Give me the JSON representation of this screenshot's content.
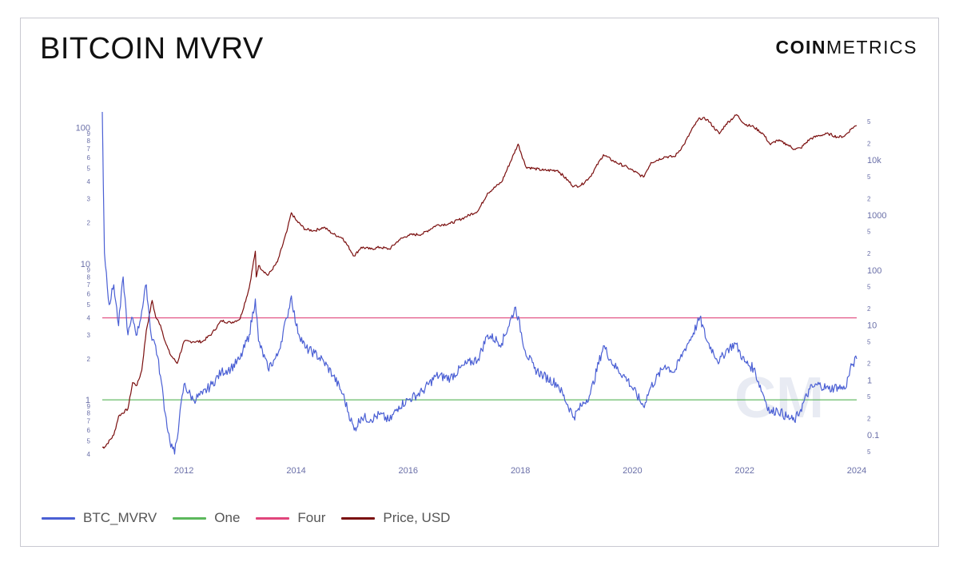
{
  "header": {
    "title": "BITCOIN MVRV",
    "brand_bold": "COIN",
    "brand_light": "METRICS",
    "watermark": "CM"
  },
  "colors": {
    "mvrv": "#4a5fd4",
    "one": "#5cb85c",
    "four": "#e0457b",
    "price": "#7a0e0e",
    "axis_text": "#6a6fa8",
    "grid": "#eeeeee"
  },
  "legend": [
    {
      "label": "BTC_MVRV",
      "color": "#4a5fd4"
    },
    {
      "label": "One",
      "color": "#5cb85c"
    },
    {
      "label": "Four",
      "color": "#e0457b"
    },
    {
      "label": "Price, USD",
      "color": "#7a0e0e"
    }
  ],
  "chart_data": {
    "type": "line",
    "x_scale": "time",
    "xlim": [
      "2010-07-18",
      "2024-01-01"
    ],
    "x_ticks": [
      "2012",
      "2014",
      "2016",
      "2018",
      "2020",
      "2022",
      "2024"
    ],
    "y_left": {
      "scale": "log",
      "ylim": [
        0.4,
        130
      ],
      "major_ticks": [
        {
          "value": 1,
          "label": "1"
        },
        {
          "value": 10,
          "label": "10"
        },
        {
          "value": 100,
          "label": "100"
        }
      ],
      "minor_ticks": [
        {
          "value": 0.4,
          "label": "4"
        },
        {
          "value": 0.5,
          "label": "5"
        },
        {
          "value": 0.6,
          "label": "6"
        },
        {
          "value": 0.7,
          "label": "7"
        },
        {
          "value": 0.8,
          "label": "8"
        },
        {
          "value": 0.9,
          "label": "9"
        },
        {
          "value": 2,
          "label": "2"
        },
        {
          "value": 3,
          "label": "3"
        },
        {
          "value": 4,
          "label": "4"
        },
        {
          "value": 5,
          "label": "5"
        },
        {
          "value": 6,
          "label": "6"
        },
        {
          "value": 7,
          "label": "7"
        },
        {
          "value": 8,
          "label": "8"
        },
        {
          "value": 9,
          "label": "9"
        },
        {
          "value": 20,
          "label": "2"
        },
        {
          "value": 30,
          "label": "3"
        },
        {
          "value": 40,
          "label": "4"
        },
        {
          "value": 50,
          "label": "5"
        },
        {
          "value": 60,
          "label": "6"
        },
        {
          "value": 70,
          "label": "7"
        },
        {
          "value": 80,
          "label": "8"
        },
        {
          "value": 90,
          "label": "9"
        }
      ]
    },
    "y_right": {
      "scale": "log",
      "ylim": [
        0.045,
        75000
      ],
      "major_ticks": [
        {
          "value": 0.1,
          "label": "0.1"
        },
        {
          "value": 1,
          "label": "1"
        },
        {
          "value": 10,
          "label": "10"
        },
        {
          "value": 100,
          "label": "100"
        },
        {
          "value": 1000,
          "label": "1000"
        },
        {
          "value": 10000,
          "label": "10k"
        }
      ],
      "minor_ticks": [
        {
          "value": 0.05,
          "label": "5"
        },
        {
          "value": 0.2,
          "label": "2"
        },
        {
          "value": 0.5,
          "label": "5"
        },
        {
          "value": 2,
          "label": "2"
        },
        {
          "value": 5,
          "label": "5"
        },
        {
          "value": 20,
          "label": "2"
        },
        {
          "value": 50,
          "label": "5"
        },
        {
          "value": 200,
          "label": "2"
        },
        {
          "value": 500,
          "label": "5"
        },
        {
          "value": 2000,
          "label": "2"
        },
        {
          "value": 5000,
          "label": "5"
        },
        {
          "value": 20000,
          "label": "2"
        },
        {
          "value": 50000,
          "label": "5"
        }
      ]
    },
    "reference_lines": [
      {
        "name": "One",
        "value": 1,
        "axis": "left"
      },
      {
        "name": "Four",
        "value": 4,
        "axis": "left"
      }
    ],
    "series": [
      {
        "name": "BTC_MVRV",
        "axis": "left",
        "x": [
          "2010-07-18",
          "2010-08-01",
          "2010-09-01",
          "2010-10-01",
          "2010-11-01",
          "2010-12-01",
          "2011-01-01",
          "2011-02-01",
          "2011-03-01",
          "2011-04-01",
          "2011-05-01",
          "2011-06-01",
          "2011-07-01",
          "2011-08-01",
          "2011-09-01",
          "2011-10-01",
          "2011-11-01",
          "2011-12-01",
          "2012-01-01",
          "2012-03-01",
          "2012-05-01",
          "2012-07-01",
          "2012-09-01",
          "2012-11-01",
          "2013-01-01",
          "2013-03-01",
          "2013-04-10",
          "2013-05-01",
          "2013-07-01",
          "2013-09-01",
          "2013-11-01",
          "2013-12-01",
          "2014-01-01",
          "2014-03-01",
          "2014-05-01",
          "2014-07-01",
          "2014-09-01",
          "2014-11-01",
          "2015-01-14",
          "2015-03-01",
          "2015-05-01",
          "2015-07-01",
          "2015-09-01",
          "2015-11-01",
          "2016-01-01",
          "2016-04-01",
          "2016-07-01",
          "2016-10-01",
          "2017-01-01",
          "2017-04-01",
          "2017-06-01",
          "2017-09-01",
          "2017-12-01",
          "2018-02-01",
          "2018-04-01",
          "2018-06-01",
          "2018-09-01",
          "2018-12-15",
          "2019-02-01",
          "2019-04-01",
          "2019-06-26",
          "2019-09-01",
          "2019-12-01",
          "2020-03-12",
          "2020-05-01",
          "2020-08-01",
          "2020-10-01",
          "2020-12-01",
          "2021-02-01",
          "2021-03-15",
          "2021-05-01",
          "2021-07-20",
          "2021-09-01",
          "2021-11-01",
          "2022-01-01",
          "2022-03-01",
          "2022-05-01",
          "2022-06-18",
          "2022-08-01",
          "2022-10-01",
          "2022-11-21",
          "2023-01-01",
          "2023-03-01",
          "2023-05-01",
          "2023-07-01",
          "2023-09-01",
          "2023-10-15",
          "2023-12-01",
          "2024-01-01"
        ],
        "y": [
          130,
          12,
          5,
          7,
          3.5,
          8,
          3,
          4,
          3,
          4.5,
          7,
          3,
          2.5,
          1.5,
          0.8,
          0.5,
          0.4,
          0.7,
          1.3,
          1.0,
          1.1,
          1.3,
          1.6,
          1.7,
          2.0,
          3.0,
          5.5,
          2.7,
          1.7,
          2.1,
          4.0,
          5.8,
          3.5,
          2.4,
          2.2,
          1.9,
          1.5,
          1.1,
          0.6,
          0.75,
          0.72,
          0.78,
          0.7,
          0.9,
          1.0,
          1.15,
          1.5,
          1.45,
          1.8,
          2.0,
          3.0,
          2.6,
          4.8,
          2.3,
          1.7,
          1.5,
          1.3,
          0.75,
          0.9,
          1.1,
          2.5,
          1.8,
          1.4,
          0.9,
          1.25,
          1.8,
          1.6,
          2.3,
          3.1,
          4.0,
          2.7,
          1.9,
          2.3,
          2.6,
          1.9,
          1.7,
          1.1,
          0.8,
          0.85,
          0.75,
          0.7,
          0.85,
          1.2,
          1.3,
          1.2,
          1.25,
          1.2,
          1.8,
          2.0
        ]
      },
      {
        "name": "Price, USD",
        "axis": "right",
        "x": [
          "2010-07-18",
          "2010-08-01",
          "2010-10-01",
          "2010-11-01",
          "2011-01-01",
          "2011-02-01",
          "2011-03-01",
          "2011-04-01",
          "2011-05-01",
          "2011-06-08",
          "2011-07-01",
          "2011-08-01",
          "2011-09-01",
          "2011-10-01",
          "2011-11-18",
          "2012-01-01",
          "2012-03-01",
          "2012-05-01",
          "2012-07-01",
          "2012-09-01",
          "2012-11-01",
          "2013-01-01",
          "2013-03-01",
          "2013-04-10",
          "2013-04-16",
          "2013-05-01",
          "2013-07-01",
          "2013-09-01",
          "2013-11-01",
          "2013-12-01",
          "2014-01-01",
          "2014-03-01",
          "2014-05-01",
          "2014-07-01",
          "2014-09-01",
          "2014-11-01",
          "2015-01-14",
          "2015-03-01",
          "2015-05-01",
          "2015-07-01",
          "2015-09-01",
          "2015-11-01",
          "2016-01-01",
          "2016-04-01",
          "2016-07-01",
          "2016-10-01",
          "2017-01-01",
          "2017-04-01",
          "2017-06-01",
          "2017-09-01",
          "2017-12-17",
          "2018-02-06",
          "2018-04-01",
          "2018-06-01",
          "2018-09-01",
          "2018-12-15",
          "2019-02-01",
          "2019-04-01",
          "2019-06-26",
          "2019-09-01",
          "2019-12-01",
          "2020-03-12",
          "2020-05-01",
          "2020-08-01",
          "2020-10-01",
          "2020-12-01",
          "2021-02-01",
          "2021-03-15",
          "2021-05-01",
          "2021-07-20",
          "2021-09-01",
          "2021-11-10",
          "2022-01-01",
          "2022-03-01",
          "2022-05-01",
          "2022-06-18",
          "2022-08-01",
          "2022-10-01",
          "2022-11-21",
          "2023-01-01",
          "2023-03-01",
          "2023-05-01",
          "2023-07-01",
          "2023-09-01",
          "2023-10-15",
          "2023-12-01",
          "2024-01-01"
        ],
        "y": [
          0.06,
          0.06,
          0.1,
          0.22,
          0.3,
          0.9,
          0.8,
          1.5,
          8,
          28,
          14,
          10,
          5,
          3,
          2,
          5,
          5,
          5,
          7,
          12,
          11,
          13,
          47,
          220,
          75,
          120,
          80,
          140,
          500,
          1100,
          800,
          550,
          520,
          600,
          450,
          380,
          180,
          260,
          240,
          260,
          240,
          350,
          430,
          450,
          650,
          700,
          900,
          1200,
          2500,
          4000,
          19500,
          7500,
          7000,
          6500,
          6500,
          3300,
          3500,
          5000,
          12500,
          9500,
          7300,
          4900,
          9000,
          11500,
          11500,
          19000,
          40000,
          58000,
          55000,
          30000,
          45000,
          67000,
          45000,
          40000,
          30000,
          19000,
          23000,
          19500,
          15800,
          16500,
          24000,
          28000,
          30000,
          26000,
          27500,
          38000,
          42500
        ]
      }
    ]
  }
}
